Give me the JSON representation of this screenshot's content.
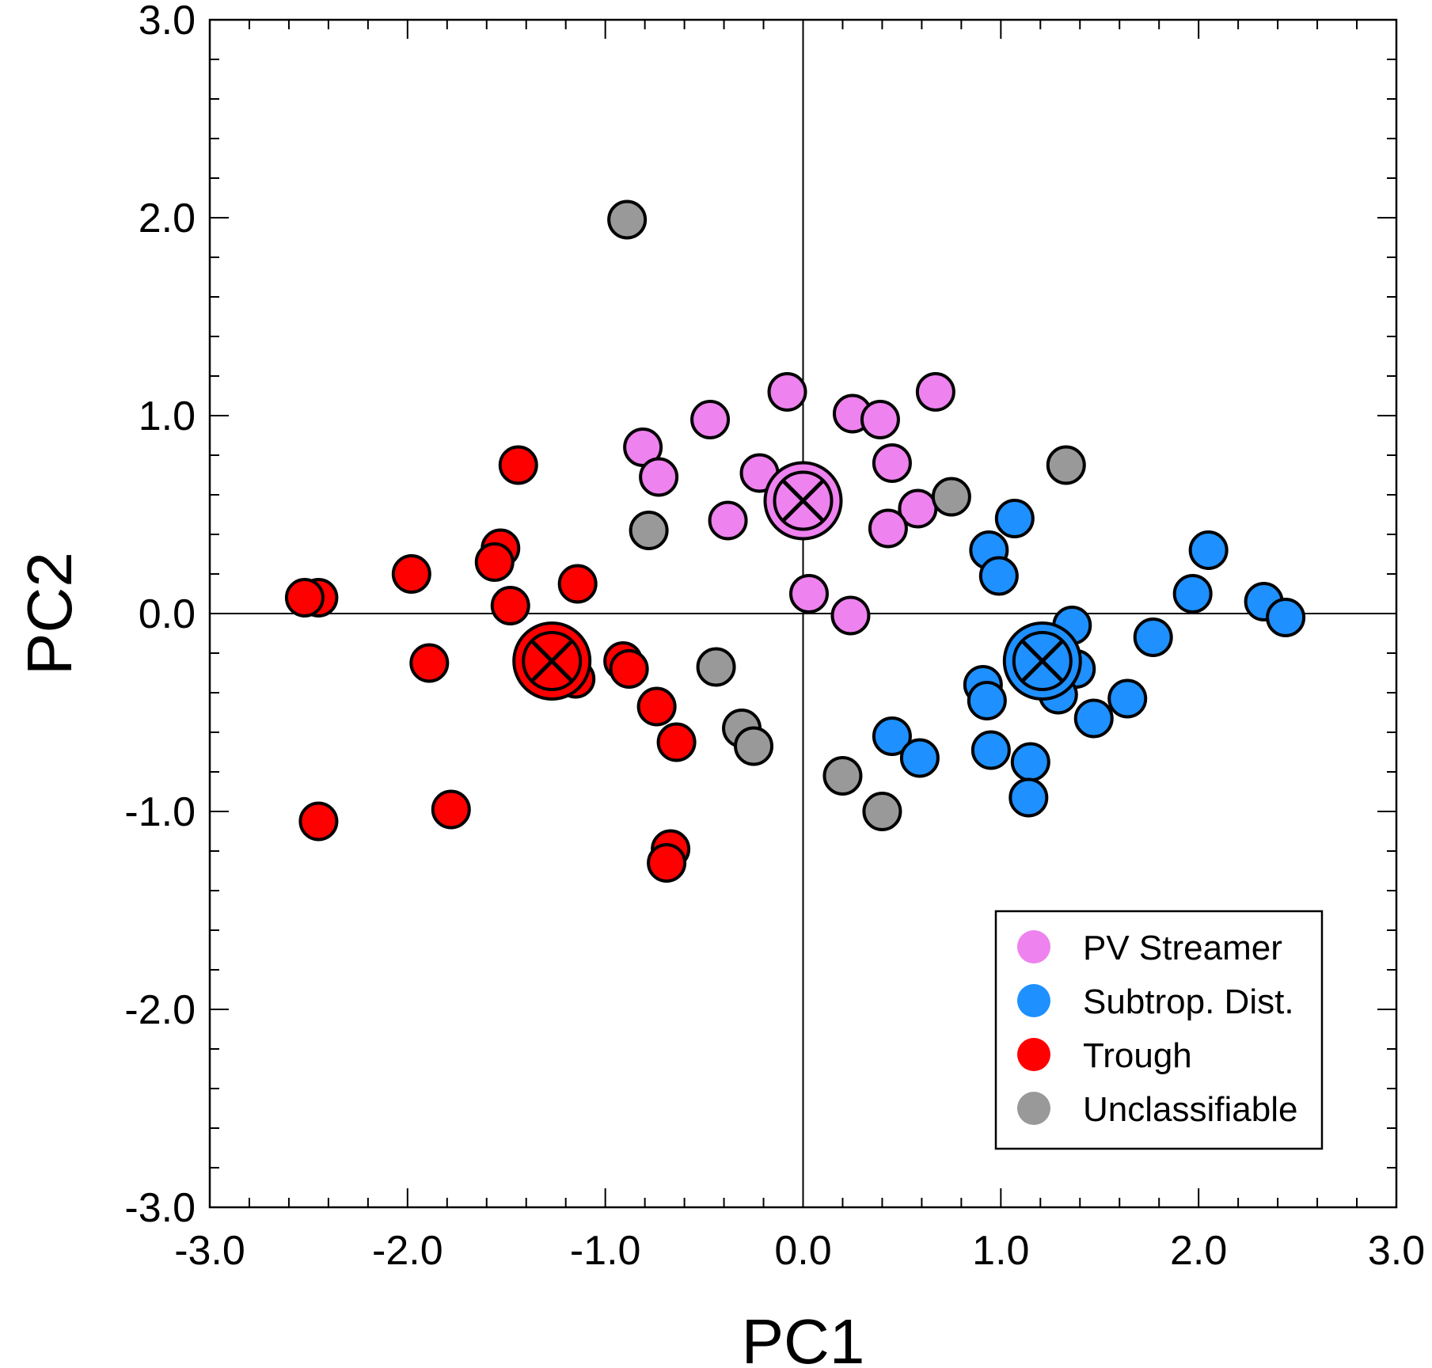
{
  "chart_data": {
    "type": "scatter",
    "xlabel": "PC1",
    "ylabel": "PC2",
    "xlim": [
      -3.0,
      3.0
    ],
    "ylim": [
      -3.0,
      3.0
    ],
    "xticks": [
      -3.0,
      -2.0,
      -1.0,
      0.0,
      1.0,
      2.0,
      3.0
    ],
    "yticks": [
      -3.0,
      -2.0,
      -1.0,
      0.0,
      1.0,
      2.0,
      3.0
    ],
    "tick_labels_x": [
      "-3.0",
      "-2.0",
      "-1.0",
      "0.0",
      "1.0",
      "2.0",
      "3.0"
    ],
    "tick_labels_y": [
      "-3.0",
      "-2.0",
      "-1.0",
      "0.0",
      "1.0",
      "2.0",
      "3.0"
    ],
    "minor_ticks_per_interval": 5,
    "reference_lines": {
      "x": 0.0,
      "y": 0.0
    },
    "grid": false,
    "legend_position": "bottom-right",
    "series": [
      {
        "name": "PV Streamer",
        "color": "#ee82ee",
        "points": [
          [
            -0.08,
            1.12
          ],
          [
            0.67,
            1.12
          ],
          [
            0.25,
            1.01
          ],
          [
            0.39,
            0.98
          ],
          [
            -0.47,
            0.98
          ],
          [
            -0.81,
            0.84
          ],
          [
            -0.73,
            0.69
          ],
          [
            0.45,
            0.76
          ],
          [
            -0.22,
            0.71
          ],
          [
            -0.38,
            0.47
          ],
          [
            0.58,
            0.53
          ],
          [
            0.43,
            0.43
          ],
          [
            0.03,
            0.1
          ],
          [
            0.24,
            -0.01
          ]
        ],
        "centroid": [
          0.0,
          0.57
        ]
      },
      {
        "name": "Subtrop. Dist.",
        "color": "#1e90ff",
        "points": [
          [
            1.07,
            0.48
          ],
          [
            0.94,
            0.32
          ],
          [
            0.99,
            0.19
          ],
          [
            2.05,
            0.32
          ],
          [
            1.97,
            0.1
          ],
          [
            2.33,
            0.06
          ],
          [
            2.44,
            -0.02
          ],
          [
            1.36,
            -0.06
          ],
          [
            1.77,
            -0.12
          ],
          [
            1.38,
            -0.28
          ],
          [
            0.91,
            -0.36
          ],
          [
            0.93,
            -0.44
          ],
          [
            1.29,
            -0.41
          ],
          [
            1.64,
            -0.43
          ],
          [
            1.47,
            -0.53
          ],
          [
            0.45,
            -0.62
          ],
          [
            0.59,
            -0.73
          ],
          [
            0.95,
            -0.69
          ],
          [
            1.15,
            -0.75
          ],
          [
            1.14,
            -0.93
          ]
        ],
        "centroid": [
          1.21,
          -0.24
        ]
      },
      {
        "name": "Trough",
        "color": "#ff0000",
        "points": [
          [
            -1.44,
            0.75
          ],
          [
            -1.53,
            0.33
          ],
          [
            -1.56,
            0.26
          ],
          [
            -1.98,
            0.2
          ],
          [
            -1.14,
            0.15
          ],
          [
            -2.45,
            0.08
          ],
          [
            -2.52,
            0.08
          ],
          [
            -1.48,
            0.04
          ],
          [
            -1.89,
            -0.25
          ],
          [
            -1.15,
            -0.33
          ],
          [
            -0.91,
            -0.24
          ],
          [
            -0.88,
            -0.28
          ],
          [
            -0.74,
            -0.47
          ],
          [
            -0.64,
            -0.65
          ],
          [
            -1.78,
            -0.99
          ],
          [
            -2.45,
            -1.05
          ],
          [
            -0.67,
            -1.19
          ],
          [
            -0.69,
            -1.26
          ]
        ],
        "centroid": [
          -1.27,
          -0.24
        ]
      },
      {
        "name": "Unclassifiable",
        "color": "#999999",
        "points": [
          [
            -0.89,
            1.99
          ],
          [
            1.33,
            0.75
          ],
          [
            0.75,
            0.59
          ],
          [
            -0.78,
            0.42
          ],
          [
            -0.44,
            -0.27
          ],
          [
            -0.31,
            -0.58
          ],
          [
            -0.25,
            -0.67
          ],
          [
            0.2,
            -0.82
          ],
          [
            0.4,
            -1.0
          ]
        ]
      }
    ]
  }
}
